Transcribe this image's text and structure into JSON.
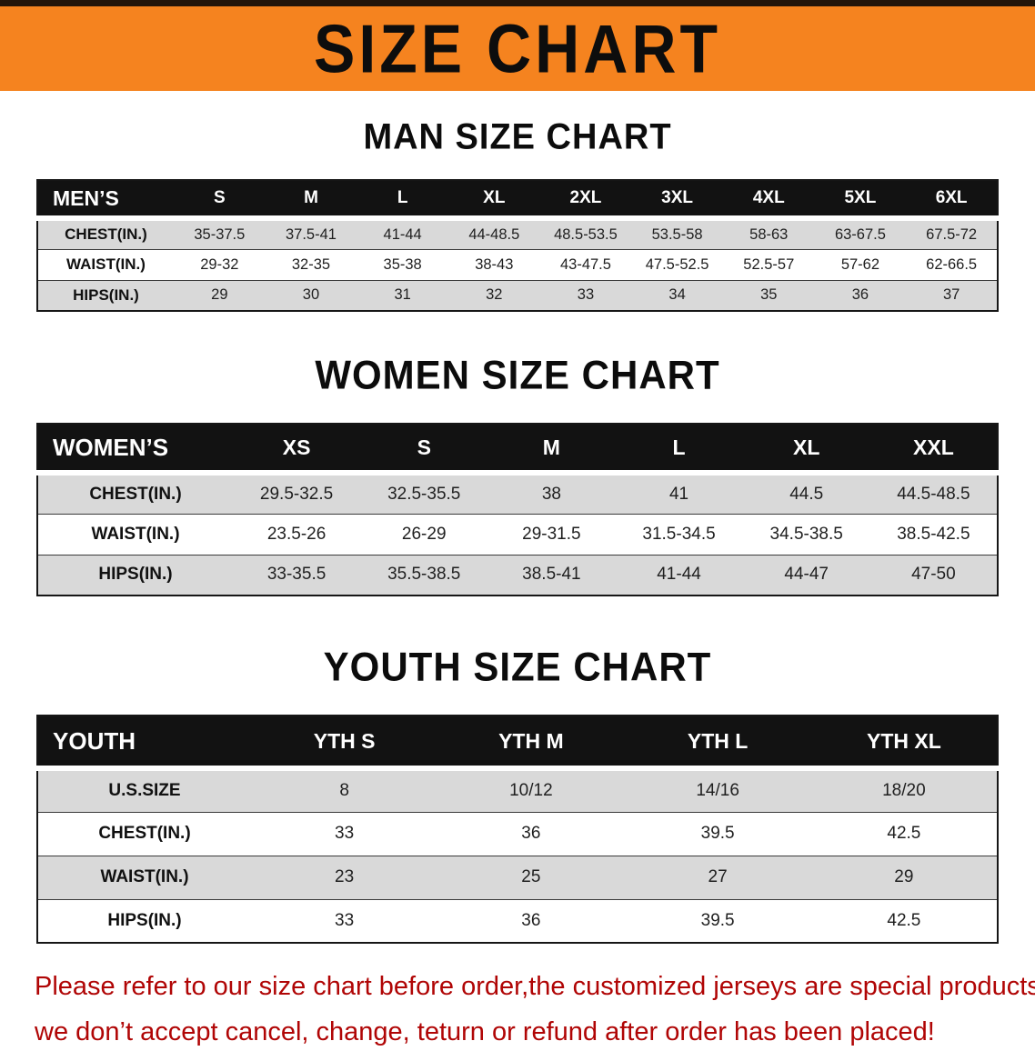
{
  "colors": {
    "banner_bg": "#F5831F",
    "banner_text": "#0d0d0d",
    "table_header_bg": "#121212",
    "table_header_text": "#ffffff",
    "row_alt_bg": "#d9d9d9",
    "row_line": "#3a3a3a",
    "disclaimer_text": "#b00505"
  },
  "banner": {
    "title": "SIZE CHART"
  },
  "sections": [
    {
      "id": "men",
      "heading": "MAN SIZE CHART",
      "table": {
        "header": [
          "MEN’S",
          "S",
          "M",
          "L",
          "XL",
          "2XL",
          "3XL",
          "4XL",
          "5XL",
          "6XL"
        ],
        "rows": [
          {
            "label": "CHEST(IN.)",
            "values": [
              "35-37.5",
              "37.5-41",
              "41-44",
              "44-48.5",
              "48.5-53.5",
              "53.5-58",
              "58-63",
              "63-67.5",
              "67.5-72"
            ]
          },
          {
            "label": "WAIST(IN.)",
            "values": [
              "29-32",
              "32-35",
              "35-38",
              "38-43",
              "43-47.5",
              "47.5-52.5",
              "52.5-57",
              "57-62",
              "62-66.5"
            ]
          },
          {
            "label": "HIPS(IN.)",
            "values": [
              "29",
              "30",
              "31",
              "32",
              "33",
              "34",
              "35",
              "36",
              "37"
            ]
          }
        ]
      }
    },
    {
      "id": "women",
      "heading": "WOMEN SIZE CHART",
      "table": {
        "header": [
          "WOMEN’S",
          "XS",
          "S",
          "M",
          "L",
          "XL",
          "XXL"
        ],
        "rows": [
          {
            "label": "CHEST(IN.)",
            "values": [
              "29.5-32.5",
              "32.5-35.5",
              "38",
              "41",
              "44.5",
              "44.5-48.5"
            ]
          },
          {
            "label": "WAIST(IN.)",
            "values": [
              "23.5-26",
              "26-29",
              "29-31.5",
              "31.5-34.5",
              "34.5-38.5",
              "38.5-42.5"
            ]
          },
          {
            "label": "HIPS(IN.)",
            "values": [
              "33-35.5",
              "35.5-38.5",
              "38.5-41",
              "41-44",
              "44-47",
              "47-50"
            ]
          }
        ]
      }
    },
    {
      "id": "youth",
      "heading": "YOUTH SIZE CHART",
      "table": {
        "header": [
          "YOUTH",
          "YTH S",
          "YTH M",
          "YTH L",
          "YTH XL"
        ],
        "rows": [
          {
            "label": "U.S.SIZE",
            "values": [
              "8",
              "10/12",
              "14/16",
              "18/20"
            ]
          },
          {
            "label": "CHEST(IN.)",
            "values": [
              "33",
              "36",
              "39.5",
              "42.5"
            ]
          },
          {
            "label": "WAIST(IN.)",
            "values": [
              "23",
              "25",
              "27",
              "29"
            ]
          },
          {
            "label": "HIPS(IN.)",
            "values": [
              "33",
              "36",
              "39.5",
              "42.5"
            ]
          }
        ]
      }
    }
  ],
  "disclaimer": {
    "line1": "Please refer to our size chart before order,the customized jerseys are special products,",
    "line2": "we don’t accept cancel, change, teturn or refund after order has been placed!"
  }
}
